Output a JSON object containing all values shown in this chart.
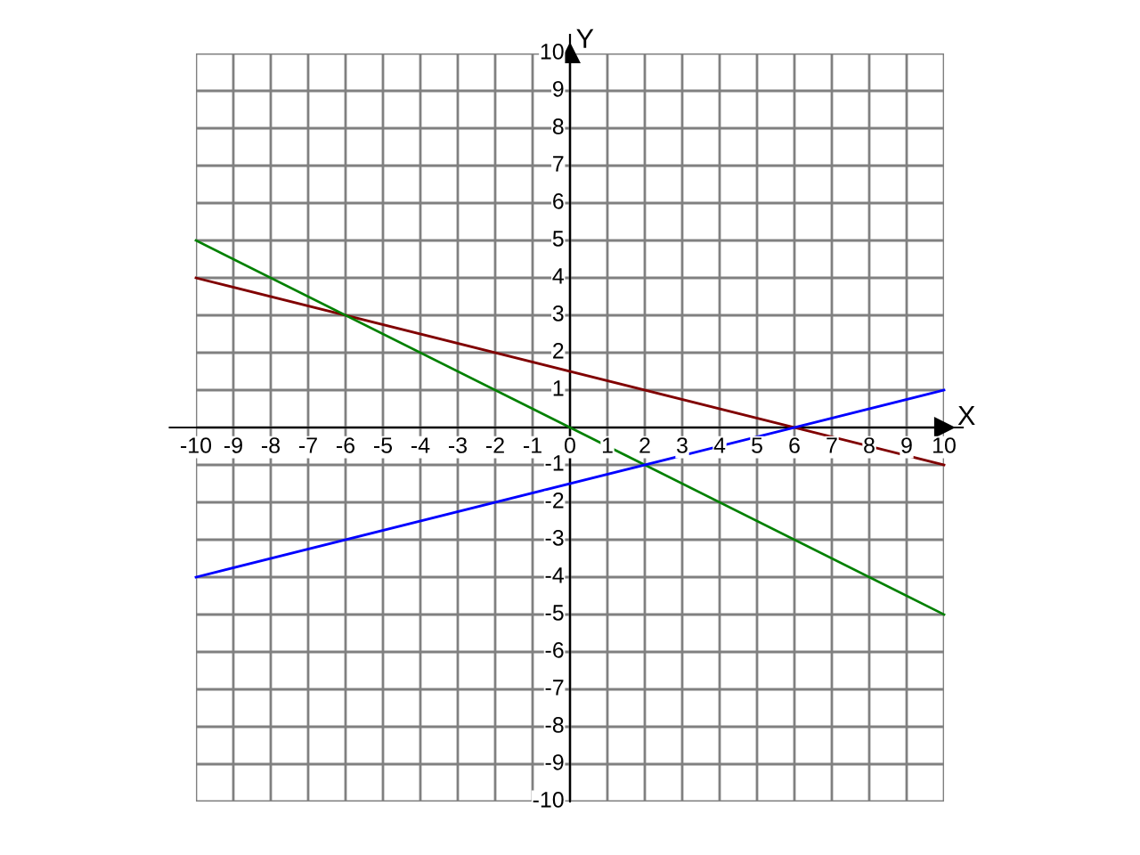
{
  "chart_data": {
    "type": "line",
    "xlabel": "X",
    "ylabel": "Y",
    "x": [
      -10,
      10
    ],
    "series": [
      {
        "color": "#800000",
        "values": [
          4,
          -1
        ]
      },
      {
        "color": "#008000",
        "values": [
          5,
          -5
        ]
      },
      {
        "color": "#0000ff",
        "values": [
          -4,
          1
        ]
      }
    ],
    "xlim": [
      -10,
      10
    ],
    "ylim": [
      -10,
      10
    ],
    "xticks": [
      -10,
      -9,
      -8,
      -7,
      -6,
      -5,
      -4,
      -3,
      -2,
      -1,
      0,
      1,
      2,
      3,
      4,
      5,
      6,
      7,
      8,
      9,
      10
    ],
    "yticks": [
      -10,
      -9,
      -8,
      -7,
      -6,
      -5,
      -4,
      -3,
      -2,
      -1,
      {
        "value": 0,
        "label": null
      },
      1,
      2,
      3,
      4,
      5,
      6,
      7,
      8,
      9,
      10
    ],
    "grid": true,
    "legend": false,
    "marker": "none",
    "line_style": "solid"
  }
}
